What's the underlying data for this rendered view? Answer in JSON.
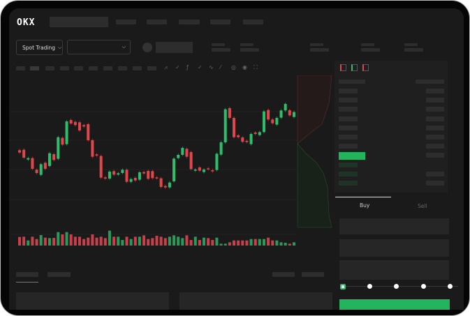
{
  "logo": "OKX",
  "market": {
    "type_selector": "Spot Trading",
    "pair_selector": ""
  },
  "trade": {
    "buy_tab": "Buy",
    "sell_tab": "Sell",
    "leverage_steps": [
      0,
      25,
      50,
      75,
      100
    ],
    "selected_step": 0
  },
  "colors": {
    "up": "#2ebd6b",
    "down": "#e0474c",
    "background": "#1a1a1a",
    "placeholder": "#2d2d2d"
  },
  "chart_data": {
    "type": "candlestick",
    "open": [
      170,
      172,
      130,
      136,
      86,
      64,
      116,
      102,
      153,
      133,
      223,
      196,
      300,
      292,
      290,
      278,
      282,
      213,
      152,
      145,
      53,
      48,
      80,
      65,
      72,
      86,
      34,
      51,
      43,
      76,
      81,
      80,
      53,
      49,
      16,
      10,
      36,
      136,
      150,
      176,
      162,
      82,
      96,
      76,
      92,
      84,
      85,
      151,
      204,
      351,
      309,
      234,
      225,
      210,
      196,
      246,
      235,
      248,
      343,
      302,
      280,
      310,
      341,
      342,
      313
    ],
    "close": [
      160,
      138,
      136,
      90,
      72,
      110,
      90,
      157,
      128,
      226,
      194,
      294,
      285,
      278,
      255,
      272,
      213,
      142,
      147,
      52,
      48,
      78,
      65,
      71,
      86,
      34,
      46,
      40,
      75,
      70,
      47,
      50,
      50,
      12,
      10,
      31,
      134,
      150,
      180,
      142,
      89,
      87,
      82,
      87,
      89,
      79,
      155,
      204,
      346,
      309,
      226,
      226,
      206,
      205,
      240,
      240,
      248,
      337,
      302,
      286,
      309,
      341,
      369,
      320,
      334
    ],
    "volume": [
      37,
      38,
      22,
      38,
      28,
      45,
      34,
      32,
      33,
      58,
      48,
      58,
      48,
      38,
      38,
      28,
      34,
      48,
      34,
      38,
      32,
      64,
      38,
      38,
      24,
      38,
      28,
      38,
      38,
      44,
      28,
      32,
      42,
      38,
      32,
      38,
      44,
      38,
      32,
      44,
      24,
      38,
      24,
      34,
      32,
      24,
      34,
      8,
      8,
      14,
      22,
      22,
      22,
      22,
      28,
      28,
      28,
      28,
      34,
      22,
      22,
      14,
      12,
      8,
      14
    ]
  }
}
